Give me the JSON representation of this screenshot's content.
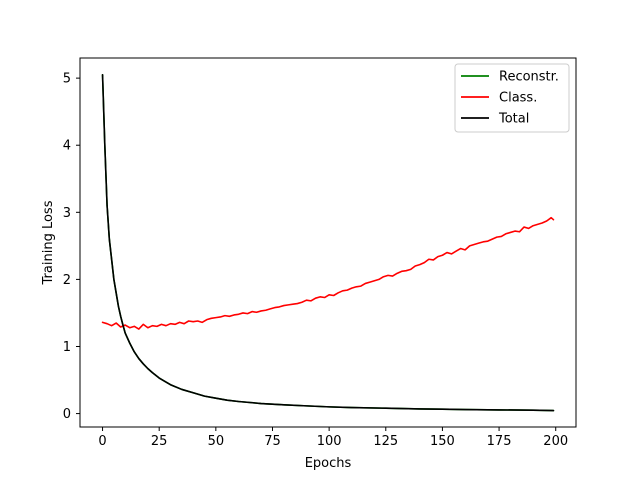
{
  "chart_data": {
    "type": "line",
    "title": "",
    "xlabel": "Epochs",
    "ylabel": "Training Loss",
    "xlim": [
      -9.95,
      208.95
    ],
    "ylim": [
      -0.2,
      5.3
    ],
    "xticks": [
      0,
      25,
      50,
      75,
      100,
      125,
      150,
      175,
      200
    ],
    "yticks": [
      0,
      1,
      2,
      3,
      4,
      5
    ],
    "grid": false,
    "legend_position": "top-right",
    "series": [
      {
        "name": "Reconstr.",
        "color": "#008000",
        "x": [
          0,
          1,
          2,
          3,
          4,
          5,
          6,
          7,
          8,
          9,
          10,
          12,
          14,
          16,
          18,
          20,
          22,
          25,
          28,
          30,
          35,
          40,
          45,
          50,
          55,
          60,
          65,
          70,
          75,
          80,
          90,
          100,
          110,
          125,
          140,
          150,
          160,
          175,
          190,
          199
        ],
        "y": [
          5.05,
          4.0,
          3.1,
          2.6,
          2.3,
          2.0,
          1.8,
          1.6,
          1.45,
          1.32,
          1.2,
          1.05,
          0.92,
          0.82,
          0.74,
          0.67,
          0.61,
          0.53,
          0.47,
          0.43,
          0.36,
          0.31,
          0.26,
          0.23,
          0.2,
          0.18,
          0.165,
          0.15,
          0.14,
          0.13,
          0.115,
          0.1,
          0.09,
          0.08,
          0.07,
          0.065,
          0.06,
          0.055,
          0.05,
          0.045
        ]
      },
      {
        "name": "Class.",
        "color": "#ff0000",
        "x": [
          0,
          2,
          4,
          6,
          8,
          10,
          12,
          14,
          16,
          18,
          20,
          22,
          24,
          26,
          28,
          30,
          32,
          34,
          36,
          38,
          40,
          42,
          44,
          46,
          48,
          50,
          52,
          54,
          56,
          58,
          60,
          62,
          64,
          66,
          68,
          70,
          72,
          74,
          76,
          78,
          80,
          82,
          84,
          86,
          88,
          90,
          92,
          94,
          96,
          98,
          100,
          102,
          104,
          106,
          108,
          110,
          112,
          114,
          116,
          118,
          120,
          122,
          124,
          126,
          128,
          130,
          132,
          134,
          136,
          138,
          140,
          142,
          144,
          146,
          148,
          150,
          152,
          154,
          156,
          158,
          160,
          162,
          164,
          166,
          168,
          170,
          172,
          174,
          176,
          178,
          180,
          182,
          184,
          186,
          188,
          190,
          192,
          194,
          196,
          198,
          199
        ],
        "y": [
          1.36,
          1.34,
          1.31,
          1.35,
          1.29,
          1.32,
          1.28,
          1.3,
          1.26,
          1.33,
          1.28,
          1.31,
          1.3,
          1.33,
          1.31,
          1.34,
          1.33,
          1.36,
          1.34,
          1.38,
          1.37,
          1.38,
          1.36,
          1.4,
          1.42,
          1.43,
          1.44,
          1.46,
          1.45,
          1.47,
          1.48,
          1.5,
          1.49,
          1.52,
          1.51,
          1.53,
          1.54,
          1.56,
          1.58,
          1.59,
          1.61,
          1.62,
          1.63,
          1.64,
          1.66,
          1.69,
          1.68,
          1.72,
          1.74,
          1.73,
          1.77,
          1.76,
          1.8,
          1.83,
          1.84,
          1.87,
          1.89,
          1.9,
          1.94,
          1.96,
          1.98,
          2.0,
          2.04,
          2.06,
          2.05,
          2.09,
          2.12,
          2.13,
          2.15,
          2.2,
          2.22,
          2.25,
          2.3,
          2.29,
          2.34,
          2.36,
          2.4,
          2.38,
          2.42,
          2.46,
          2.44,
          2.5,
          2.52,
          2.54,
          2.56,
          2.57,
          2.6,
          2.63,
          2.64,
          2.68,
          2.7,
          2.72,
          2.71,
          2.78,
          2.76,
          2.8,
          2.82,
          2.84,
          2.87,
          2.92,
          2.89
        ]
      },
      {
        "name": "Total",
        "color": "#000000",
        "x": [
          0,
          1,
          2,
          3,
          4,
          5,
          6,
          7,
          8,
          9,
          10,
          12,
          14,
          16,
          18,
          20,
          22,
          25,
          28,
          30,
          35,
          40,
          45,
          50,
          55,
          60,
          65,
          70,
          75,
          80,
          90,
          100,
          110,
          125,
          140,
          150,
          160,
          175,
          190,
          199
        ],
        "y": [
          5.05,
          4.0,
          3.1,
          2.6,
          2.3,
          2.0,
          1.8,
          1.6,
          1.45,
          1.32,
          1.2,
          1.05,
          0.92,
          0.82,
          0.74,
          0.67,
          0.61,
          0.53,
          0.47,
          0.43,
          0.36,
          0.31,
          0.26,
          0.23,
          0.2,
          0.18,
          0.165,
          0.15,
          0.14,
          0.13,
          0.115,
          0.1,
          0.09,
          0.08,
          0.07,
          0.065,
          0.06,
          0.055,
          0.05,
          0.045
        ]
      }
    ]
  }
}
